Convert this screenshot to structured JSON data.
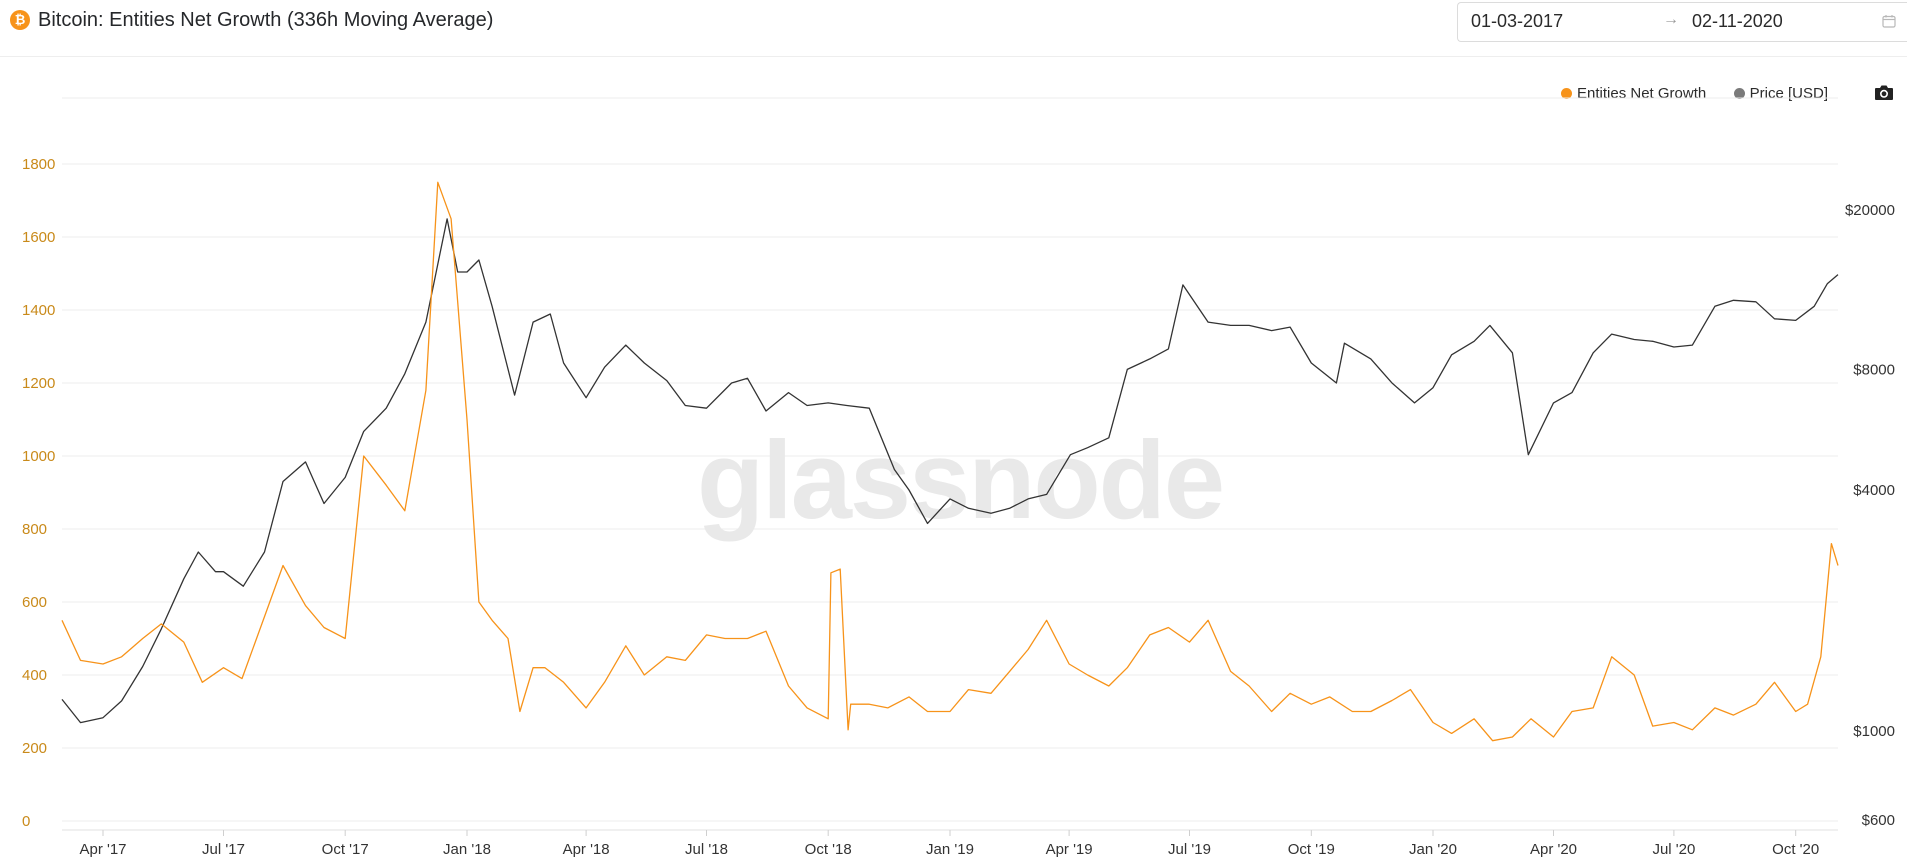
{
  "header": {
    "title": "Bitcoin: Entities Net Growth (336h Moving Average)",
    "icon_glyph": "₿",
    "date_start": "01-03-2017",
    "date_end": "02-11-2020",
    "date_arrow": "→"
  },
  "watermark": "glassnode",
  "colors": {
    "growth": "#f7931a",
    "price": "#333333",
    "left_ticks": "#c98a1a"
  },
  "chart_data": {
    "type": "line",
    "x_range": [
      "2017-03-01",
      "2020-11-02"
    ],
    "x_ticks": [
      {
        "label": "Apr '17",
        "date": "2017-04-01"
      },
      {
        "label": "Jul '17",
        "date": "2017-07-01"
      },
      {
        "label": "Oct '17",
        "date": "2017-10-01"
      },
      {
        "label": "Jan '18",
        "date": "2018-01-01"
      },
      {
        "label": "Apr '18",
        "date": "2018-04-01"
      },
      {
        "label": "Jul '18",
        "date": "2018-07-01"
      },
      {
        "label": "Oct '18",
        "date": "2018-10-01"
      },
      {
        "label": "Jan '19",
        "date": "2019-01-01"
      },
      {
        "label": "Apr '19",
        "date": "2019-04-01"
      },
      {
        "label": "Jul '19",
        "date": "2019-07-01"
      },
      {
        "label": "Oct '19",
        "date": "2019-10-01"
      },
      {
        "label": "Jan '20",
        "date": "2020-01-01"
      },
      {
        "label": "Apr '20",
        "date": "2020-04-01"
      },
      {
        "label": "Jul '20",
        "date": "2020-07-01"
      },
      {
        "label": "Oct '20",
        "date": "2020-10-01"
      }
    ],
    "left_axis": {
      "ticks": [
        "0",
        "200",
        "400",
        "600",
        "800",
        "1000",
        "1200",
        "1400",
        "1600",
        "1800"
      ],
      "range": [
        0,
        1800
      ]
    },
    "right_axis": {
      "scale": "log",
      "ticks": [
        {
          "label": "$600",
          "value": 600
        },
        {
          "label": "$1000",
          "value": 1000
        },
        {
          "label": "$4000",
          "value": 4000
        },
        {
          "label": "$8000",
          "value": 8000
        },
        {
          "label": "$20000",
          "value": 20000
        }
      ],
      "range": [
        600,
        20000
      ]
    },
    "grid": true,
    "legend": "top-right",
    "series": [
      {
        "name": "Entities Net Growth",
        "axis": "left",
        "x": [
          "2017-03-01",
          "2017-03-15",
          "2017-04-01",
          "2017-04-15",
          "2017-05-01",
          "2017-05-15",
          "2017-06-01",
          "2017-06-15",
          "2017-07-01",
          "2017-07-15",
          "2017-08-01",
          "2017-08-15",
          "2017-09-01",
          "2017-09-15",
          "2017-10-01",
          "2017-10-15",
          "2017-11-01",
          "2017-11-15",
          "2017-12-01",
          "2017-12-10",
          "2017-12-20",
          "2018-01-01",
          "2018-01-10",
          "2018-01-20",
          "2018-02-01",
          "2018-02-10",
          "2018-02-20",
          "2018-03-01",
          "2018-03-15",
          "2018-04-01",
          "2018-04-15",
          "2018-05-01",
          "2018-05-15",
          "2018-06-01",
          "2018-06-15",
          "2018-07-01",
          "2018-07-15",
          "2018-08-01",
          "2018-08-15",
          "2018-09-01",
          "2018-09-15",
          "2018-10-01",
          "2018-10-03",
          "2018-10-10",
          "2018-10-16",
          "2018-10-18",
          "2018-11-01",
          "2018-11-15",
          "2018-12-01",
          "2018-12-15",
          "2019-01-01",
          "2019-01-15",
          "2019-02-01",
          "2019-02-15",
          "2019-03-01",
          "2019-03-15",
          "2019-04-01",
          "2019-04-15",
          "2019-05-01",
          "2019-05-15",
          "2019-06-01",
          "2019-06-15",
          "2019-07-01",
          "2019-07-15",
          "2019-08-01",
          "2019-08-15",
          "2019-09-01",
          "2019-09-15",
          "2019-10-01",
          "2019-10-15",
          "2019-11-01",
          "2019-11-15",
          "2019-12-01",
          "2019-12-15",
          "2020-01-01",
          "2020-01-15",
          "2020-02-01",
          "2020-02-15",
          "2020-03-01",
          "2020-03-15",
          "2020-04-01",
          "2020-04-15",
          "2020-05-01",
          "2020-05-15",
          "2020-06-01",
          "2020-06-15",
          "2020-07-01",
          "2020-07-15",
          "2020-08-01",
          "2020-08-15",
          "2020-09-01",
          "2020-09-15",
          "2020-10-01",
          "2020-10-10",
          "2020-10-20",
          "2020-10-28",
          "2020-11-02"
        ],
        "y": [
          550,
          440,
          430,
          450,
          500,
          540,
          490,
          380,
          420,
          390,
          560,
          700,
          590,
          530,
          500,
          1000,
          920,
          850,
          1180,
          1750,
          1650,
          1100,
          600,
          550,
          500,
          300,
          420,
          420,
          380,
          310,
          380,
          480,
          400,
          450,
          440,
          510,
          500,
          500,
          520,
          370,
          310,
          280,
          680,
          690,
          250,
          320,
          320,
          310,
          340,
          300,
          300,
          360,
          350,
          410,
          470,
          550,
          430,
          400,
          370,
          420,
          510,
          530,
          490,
          550,
          410,
          370,
          300,
          350,
          320,
          340,
          300,
          300,
          330,
          360,
          270,
          240,
          280,
          220,
          230,
          280,
          230,
          300,
          310,
          450,
          400,
          260,
          270,
          250,
          310,
          290,
          320,
          380,
          300,
          320,
          450,
          760,
          700
        ]
      },
      {
        "name": "Price [USD]",
        "axis": "right",
        "x": [
          "2017-03-01",
          "2017-03-15",
          "2017-04-01",
          "2017-04-15",
          "2017-05-01",
          "2017-05-15",
          "2017-06-01",
          "2017-06-12",
          "2017-06-25",
          "2017-07-01",
          "2017-07-16",
          "2017-08-01",
          "2017-08-15",
          "2017-09-01",
          "2017-09-15",
          "2017-10-01",
          "2017-10-15",
          "2017-11-01",
          "2017-11-15",
          "2017-12-01",
          "2017-12-17",
          "2017-12-25",
          "2018-01-01",
          "2018-01-10",
          "2018-01-20",
          "2018-02-06",
          "2018-02-20",
          "2018-03-05",
          "2018-03-15",
          "2018-04-01",
          "2018-04-15",
          "2018-05-01",
          "2018-05-15",
          "2018-06-01",
          "2018-06-15",
          "2018-07-01",
          "2018-07-20",
          "2018-08-01",
          "2018-08-15",
          "2018-09-01",
          "2018-09-15",
          "2018-10-01",
          "2018-10-15",
          "2018-11-01",
          "2018-11-20",
          "2018-12-01",
          "2018-12-15",
          "2019-01-01",
          "2019-01-15",
          "2019-02-01",
          "2019-02-15",
          "2019-03-01",
          "2019-03-15",
          "2019-04-02",
          "2019-04-15",
          "2019-05-01",
          "2019-05-15",
          "2019-06-01",
          "2019-06-15",
          "2019-06-26",
          "2019-07-15",
          "2019-08-01",
          "2019-08-15",
          "2019-09-01",
          "2019-09-15",
          "2019-10-01",
          "2019-10-20",
          "2019-10-26",
          "2019-11-15",
          "2019-12-01",
          "2019-12-18",
          "2020-01-01",
          "2020-01-15",
          "2020-02-01",
          "2020-02-13",
          "2020-03-01",
          "2020-03-13",
          "2020-04-01",
          "2020-04-15",
          "2020-05-01",
          "2020-05-15",
          "2020-06-01",
          "2020-06-15",
          "2020-07-01",
          "2020-07-15",
          "2020-08-01",
          "2020-08-15",
          "2020-09-01",
          "2020-09-15",
          "2020-10-01",
          "2020-10-15",
          "2020-10-25",
          "2020-11-02"
        ],
        "y": [
          1200,
          1050,
          1080,
          1190,
          1450,
          1800,
          2400,
          2800,
          2500,
          2500,
          2300,
          2800,
          4200,
          4700,
          3700,
          4300,
          5600,
          6400,
          7800,
          10500,
          19000,
          14000,
          14000,
          15000,
          11500,
          6900,
          10500,
          11000,
          8300,
          6800,
          8100,
          9200,
          8300,
          7500,
          6500,
          6400,
          7400,
          7600,
          6300,
          7000,
          6500,
          6600,
          6500,
          6400,
          4500,
          4000,
          3300,
          3800,
          3600,
          3500,
          3600,
          3800,
          3900,
          4900,
          5100,
          5400,
          8000,
          8500,
          9000,
          13000,
          10500,
          10300,
          10300,
          10000,
          10200,
          8300,
          7400,
          9300,
          8500,
          7400,
          6600,
          7200,
          8700,
          9400,
          10300,
          8800,
          4900,
          6600,
          7000,
          8800,
          9800,
          9500,
          9400,
          9100,
          9200,
          11500,
          11900,
          11800,
          10700,
          10600,
          11500,
          13100,
          13800
        ]
      }
    ]
  }
}
